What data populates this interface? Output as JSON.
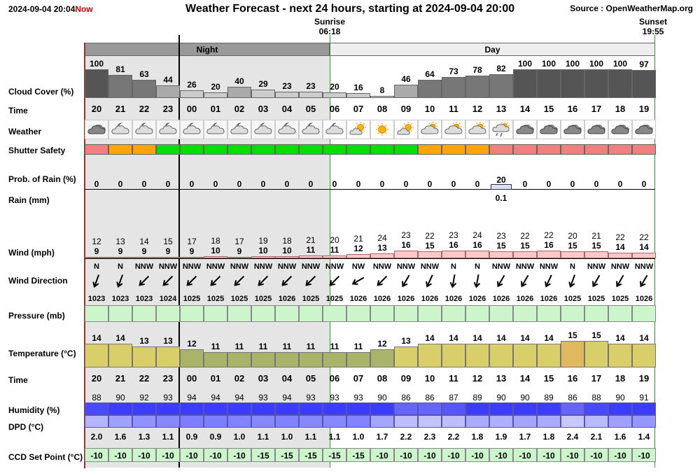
{
  "header": {
    "timestamp": "2024-09-04 20:04",
    "now_label": "Now",
    "title": "Weather Forecast - next 24 hours, starting at 2024-09-04 20:00",
    "source": "Source : OpenWeatherMap.org",
    "sunrise_label": "Sunrise",
    "sunrise_time": "06:18",
    "sunset_label": "Sunset",
    "sunset_time": "19:55"
  },
  "periods": {
    "night": "Night",
    "day": "Day"
  },
  "labels": {
    "cloud_cover": "Cloud Cover (%)",
    "time": "Time",
    "weather": "Weather",
    "shutter_safety": "Shutter Safety",
    "prob_rain": "Prob. of Rain (%)",
    "rain": "Rain (mm)",
    "wind": "Wind (mph)",
    "wind_direction": "Wind Direction",
    "pressure": "Pressure (mb)",
    "temperature": "Temperature (°C)",
    "time2": "Time",
    "humidity": "Humidity (%)",
    "dpd": "DPD (°C)",
    "ccd": "CCD Set Point (°C)"
  },
  "hours": [
    "20",
    "21",
    "22",
    "23",
    "00",
    "01",
    "02",
    "03",
    "04",
    "05",
    "06",
    "07",
    "08",
    "09",
    "10",
    "11",
    "12",
    "13",
    "14",
    "15",
    "16",
    "17",
    "18",
    "19"
  ],
  "cloud_cover": [
    100,
    81,
    63,
    44,
    26,
    20,
    40,
    29,
    23,
    23,
    20,
    16,
    8,
    46,
    64,
    73,
    78,
    82,
    100,
    100,
    100,
    100,
    100,
    97
  ],
  "weather_icons": [
    "cloudy-icon",
    "partly-cloudy-night-icon",
    "partly-cloudy-night-icon",
    "partly-cloudy-night-icon",
    "partly-cloudy-night-icon",
    "partly-cloudy-night-icon",
    "partly-cloudy-night-icon",
    "partly-cloudy-night-icon",
    "partly-cloudy-night-icon",
    "partly-cloudy-night-icon",
    "partly-cloudy-night-icon",
    "partly-sunny-icon",
    "sunny-icon",
    "partly-sunny-icon",
    "partly-cloudy-icon",
    "partly-cloudy-icon",
    "partly-cloudy-icon",
    "light-rain-icon",
    "cloudy-icon",
    "cloudy-icon",
    "cloudy-icon",
    "cloudy-icon",
    "cloudy-icon",
    "cloudy-icon"
  ],
  "shutter_safety": [
    "red",
    "orange",
    "orange",
    "green",
    "green",
    "green",
    "green",
    "green",
    "green",
    "green",
    "green",
    "green",
    "green",
    "green",
    "orange",
    "orange",
    "orange",
    "red",
    "red",
    "red",
    "red",
    "red",
    "red",
    "red"
  ],
  "shutter_colors": {
    "red": "#f08080",
    "orange": "#ffa500",
    "green": "#00e000"
  },
  "prob_rain": [
    0,
    0,
    0,
    0,
    0,
    0,
    0,
    0,
    0,
    0,
    0,
    0,
    0,
    0,
    0,
    0,
    0,
    20,
    0,
    0,
    0,
    0,
    0,
    0
  ],
  "rain_mm": [
    "",
    "",
    "",
    "",
    "",
    "",
    "",
    "",
    "",
    "",
    "",
    "",
    "",
    "",
    "",
    "",
    "",
    "0.1",
    "",
    "",
    "",
    "",
    "",
    ""
  ],
  "wind_speed": [
    9,
    9,
    9,
    9,
    9,
    10,
    9,
    10,
    10,
    11,
    11,
    12,
    13,
    16,
    15,
    16,
    16,
    15,
    15,
    16,
    15,
    15,
    14,
    14
  ],
  "wind_gust": [
    12,
    13,
    14,
    15,
    17,
    18,
    17,
    19,
    18,
    21,
    20,
    21,
    24,
    23,
    22,
    23,
    24,
    23,
    22,
    22,
    20,
    21,
    22,
    22
  ],
  "wind_direction": [
    "N",
    "N",
    "NNW",
    "NNW",
    "NNW",
    "NNW",
    "NNW",
    "NNW",
    "NNW",
    "NNW",
    "NNW",
    "NW",
    "NNW",
    "NNW",
    "NNW",
    "N",
    "N",
    "NNW",
    "NNW",
    "NNW",
    "N",
    "NNW",
    "NNW",
    "NNW"
  ],
  "wind_angle": [
    20,
    20,
    45,
    45,
    45,
    45,
    45,
    45,
    45,
    45,
    45,
    60,
    45,
    30,
    25,
    10,
    10,
    30,
    30,
    25,
    20,
    30,
    30,
    30
  ],
  "pressure": [
    1023,
    1023,
    1023,
    1024,
    1025,
    1025,
    1025,
    1025,
    1026,
    1025,
    1025,
    1026,
    1026,
    1026,
    1026,
    1026,
    1026,
    1026,
    1026,
    1026,
    1025,
    1025,
    1025,
    1026
  ],
  "temperature": [
    14,
    14,
    13,
    13,
    12,
    11,
    11,
    11,
    11,
    11,
    11,
    11,
    12,
    13,
    14,
    14,
    14,
    14,
    14,
    14,
    15,
    15,
    14,
    14
  ],
  "humidity": [
    88,
    90,
    92,
    93,
    94,
    94,
    94,
    93,
    94,
    93,
    93,
    93,
    90,
    86,
    86,
    87,
    89,
    90,
    90,
    89,
    86,
    88,
    90,
    91
  ],
  "dpd": [
    "2.0",
    "1.6",
    "1.3",
    "1.1",
    "0.9",
    "0.9",
    "1.0",
    "1.1",
    "1.0",
    "1.1",
    "1.1",
    "1.0",
    "1.7",
    "2.2",
    "2.3",
    "2.2",
    "1.8",
    "1.9",
    "1.7",
    "1.8",
    "2.4",
    "2.1",
    "1.6",
    "1.4"
  ],
  "ccd": [
    -10,
    -10,
    -10,
    -10,
    -10,
    -10,
    -10,
    -15,
    -15,
    -15,
    -15,
    -15,
    -10,
    -10,
    -10,
    -10,
    -10,
    -10,
    -10,
    -10,
    -10,
    -10,
    -10,
    -10
  ],
  "colors": {
    "night_bg": "#e5e5e5",
    "cloud_bar": "#555555",
    "temp_day": "#d8cf6a",
    "temp_night": "#aab36a",
    "temp_warm": "#e0b860",
    "pressure": "#ccf5cc",
    "ccd": "#ccf5cc",
    "wind_bar": "#ffc8c8"
  }
}
